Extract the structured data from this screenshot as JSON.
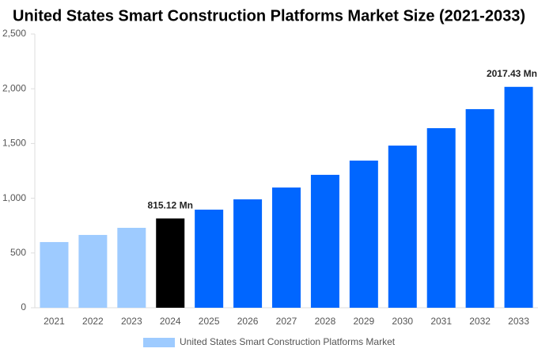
{
  "chart_data": {
    "type": "bar",
    "title": "United States Smart Construction Platforms Market Size (2021-2033)",
    "categories": [
      "2021",
      "2022",
      "2023",
      "2024",
      "2025",
      "2026",
      "2027",
      "2028",
      "2029",
      "2030",
      "2031",
      "2032",
      "2033"
    ],
    "series": [
      {
        "name": "United States Smart Construction Platforms Market",
        "color": "#9ecbff",
        "values": [
          600,
          665,
          730,
          815.12,
          896,
          990,
          1098,
          1214,
          1344,
          1481,
          1640,
          1814,
          2017.43
        ],
        "colors": [
          "#9ecbff",
          "#9ecbff",
          "#9ecbff",
          "#000000",
          "#0066ff",
          "#0066ff",
          "#0066ff",
          "#0066ff",
          "#0066ff",
          "#0066ff",
          "#0066ff",
          "#0066ff",
          "#0066ff"
        ],
        "value_labels": [
          null,
          null,
          null,
          "815.12 Mn",
          null,
          null,
          null,
          null,
          null,
          null,
          null,
          null,
          "2017.43 Mn"
        ]
      }
    ],
    "ylim": [
      0,
      2500
    ],
    "yticks": [
      0,
      500,
      {
        "value": 1000,
        "label": "1,000"
      },
      {
        "value": 1500,
        "label": "1,500"
      },
      {
        "value": 2000,
        "label": "2,000"
      },
      {
        "value": 2500,
        "label": "2,500"
      }
    ],
    "grid": false
  }
}
